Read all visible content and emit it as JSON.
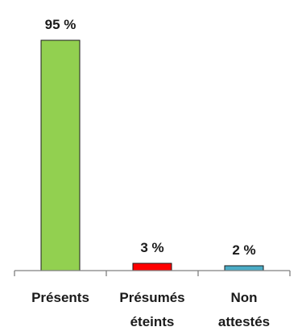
{
  "chart_data": {
    "type": "bar",
    "categories": [
      [
        "Présents"
      ],
      [
        "Présumés",
        "éteints"
      ],
      [
        "Non",
        "attestés"
      ]
    ],
    "values": [
      95,
      3,
      2
    ],
    "value_labels": [
      "95 %",
      "3 %",
      "2 %"
    ],
    "colors": [
      "#92d050",
      "#ff0000",
      "#4bacc6"
    ],
    "ylim": [
      0,
      100
    ],
    "grid": false,
    "legend": false
  }
}
